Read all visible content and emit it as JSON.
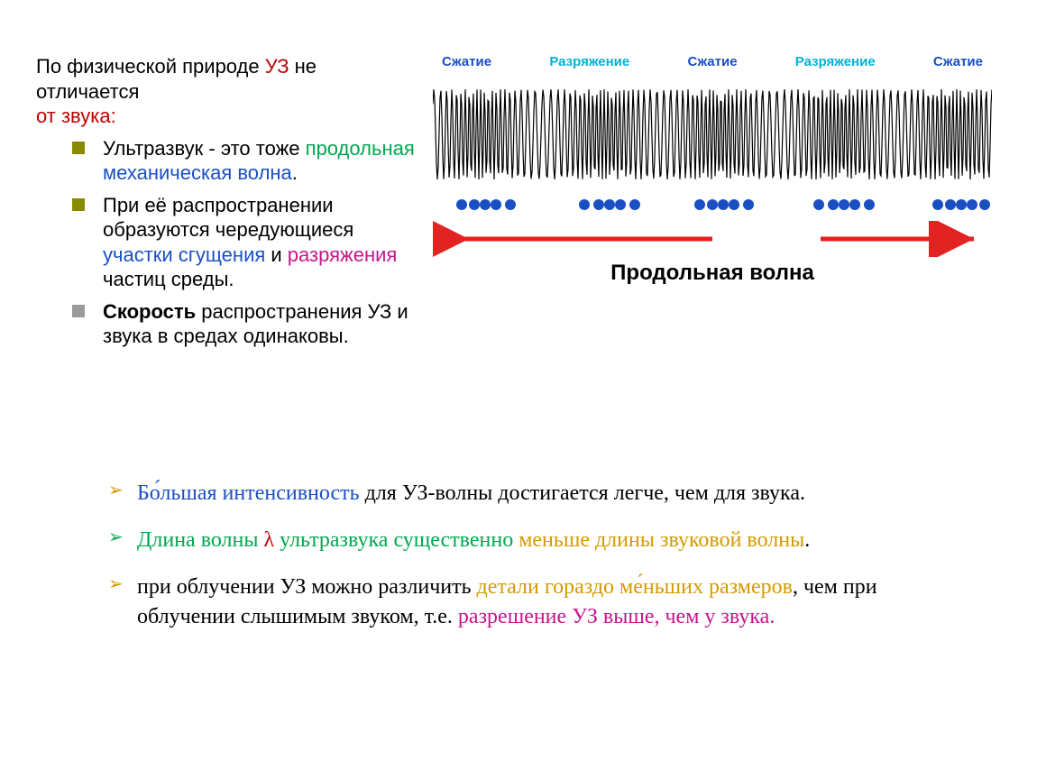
{
  "colors": {
    "red": "#c00000",
    "green": "#00a84f",
    "blue": "#1a4fc4",
    "magenta": "#c7158c",
    "orange": "#d49a00",
    "olive": "#8a8a00",
    "gray": "#9a9a9a",
    "cyan": "#00b2d6",
    "black": "#000000"
  },
  "intro": {
    "part1": "По физической природе ",
    "uz": "УЗ",
    "part2": " не отличается ",
    "part3": "от звука:"
  },
  "bullets": [
    {
      "square_color": "#8a8a00",
      "t1": "Ультразвук - это тоже ",
      "t2": "продольная ",
      "t2_color": "#00a84f",
      "t3": "механическая волна",
      "t3_color": "#1a4fc4",
      "t4": "."
    },
    {
      "square_color": "#8a8a00",
      "t1": "При её распространении образуются чередующиеся ",
      "t2": "участки сгущения",
      "t2_color": "#1a4fc4",
      "t3": " и ",
      "t4": "разряжения",
      "t4_color": "#c7158c",
      "t5": " частиц среды."
    },
    {
      "square_color": "#9a9a9a",
      "t1": "Скорость",
      "t1_bold": true,
      "t2": " распространения УЗ и звука в средах одинаковы."
    }
  ],
  "diagram": {
    "labels": [
      {
        "text": "Сжатие",
        "color": "#1a4fc4"
      },
      {
        "text": "Разряжение",
        "color": "#00b2d6"
      },
      {
        "text": "Сжатие",
        "color": "#1a4fc4"
      },
      {
        "text": "Разряжение",
        "color": "#00b2d6"
      },
      {
        "text": "Сжатие",
        "color": "#1a4fc4"
      }
    ],
    "caption": "Продольная волна",
    "dot_color": "#1a4fc4",
    "arrow_color": "#e32322",
    "wave_color": "#000000",
    "dot_positions": [
      26,
      40,
      52,
      64,
      80,
      162,
      178,
      190,
      202,
      218,
      290,
      304,
      316,
      328,
      344,
      422,
      438,
      450,
      462,
      478,
      554,
      568,
      580,
      592,
      606
    ]
  },
  "lower_points": [
    {
      "chev_color": "#d49a00",
      "parts": [
        {
          "text": "Бо́льшая интенсивность",
          "color": "#1a4fc4"
        },
        {
          "text": " для УЗ-волны достигается легче, чем для звука."
        }
      ]
    },
    {
      "chev_color": "#00a84f",
      "parts": [
        {
          "text": "Длина волны ",
          "color": "#00a84f"
        },
        {
          "text": "λ",
          "color": "#c00000"
        },
        {
          "text": " ультразвука существенно ",
          "color": "#00a84f"
        },
        {
          "text": "меньше длины звуковой волны",
          "color": "#d49a00"
        },
        {
          "text": "."
        }
      ]
    },
    {
      "chev_color": "#d49a00",
      "parts": [
        {
          "text": "при облучении УЗ можно различить "
        },
        {
          "text": "детали гораздо ме́ньших размеров",
          "color": "#d49a00"
        },
        {
          "text": ", чем при облучении слышимым звуком, т.е. "
        },
        {
          "text": "разрешение УЗ выше, чем у звука.",
          "color": "#c7158c"
        }
      ]
    }
  ]
}
